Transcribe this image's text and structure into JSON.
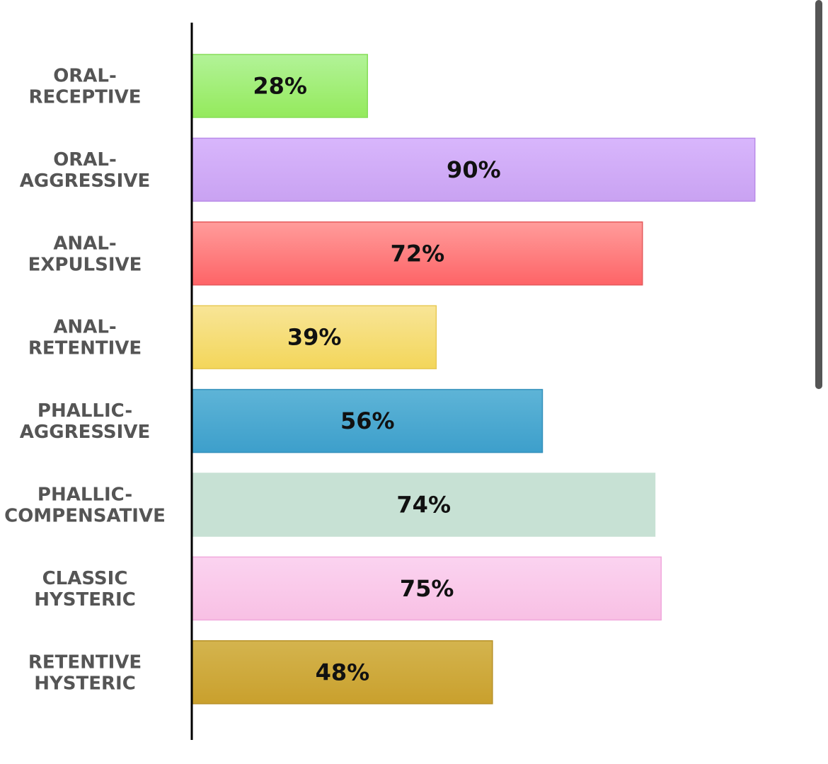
{
  "chart_data": {
    "type": "bar",
    "orientation": "horizontal",
    "categories": [
      [
        "ORAL-",
        "RECEPTIVE"
      ],
      [
        "ORAL-",
        "AGGRESSIVE"
      ],
      [
        "ANAL-",
        "EXPULSIVE"
      ],
      [
        "ANAL-",
        "RETENTIVE"
      ],
      [
        "PHALLIC-",
        "AGGRESSIVE"
      ],
      [
        "PHALLIC-",
        "COMPENSATIVE"
      ],
      [
        "CLASSIC",
        "HYSTERIC"
      ],
      [
        "RETENTIVE",
        "HYSTERIC"
      ]
    ],
    "values": [
      28,
      90,
      72,
      39,
      56,
      74,
      75,
      48
    ],
    "value_labels": [
      "28%",
      "90%",
      "72%",
      "39%",
      "56%",
      "74%",
      "75%",
      "48%"
    ],
    "xlim": [
      0,
      100
    ],
    "unit": "%",
    "grid": false,
    "colors": [
      {
        "top": "#b2f398",
        "bottom": "#94ea5c",
        "stroke": "#86dd58"
      },
      {
        "top": "#d8b6fc",
        "bottom": "#c9a2f2",
        "stroke": "#b98ae8"
      },
      {
        "top": "#ff9c9b",
        "bottom": "#fe6467",
        "stroke": "#e55a5c"
      },
      {
        "top": "#f8e597",
        "bottom": "#f3d65a",
        "stroke": "#e8c955"
      },
      {
        "top": "#5eb4d7",
        "bottom": "#3d9fcb",
        "stroke": "#3390bb"
      },
      {
        "top": "#c7e1d4",
        "bottom": "#c7e1d4",
        "stroke": "#c7e1d4"
      },
      {
        "top": "#fbd3f0",
        "bottom": "#f8c0e4",
        "stroke": "#f0a8dc"
      },
      {
        "top": "#d4b44e",
        "bottom": "#c9a02d",
        "stroke": "#b89229"
      }
    ]
  },
  "scrollbar": {
    "color": "#555555"
  }
}
